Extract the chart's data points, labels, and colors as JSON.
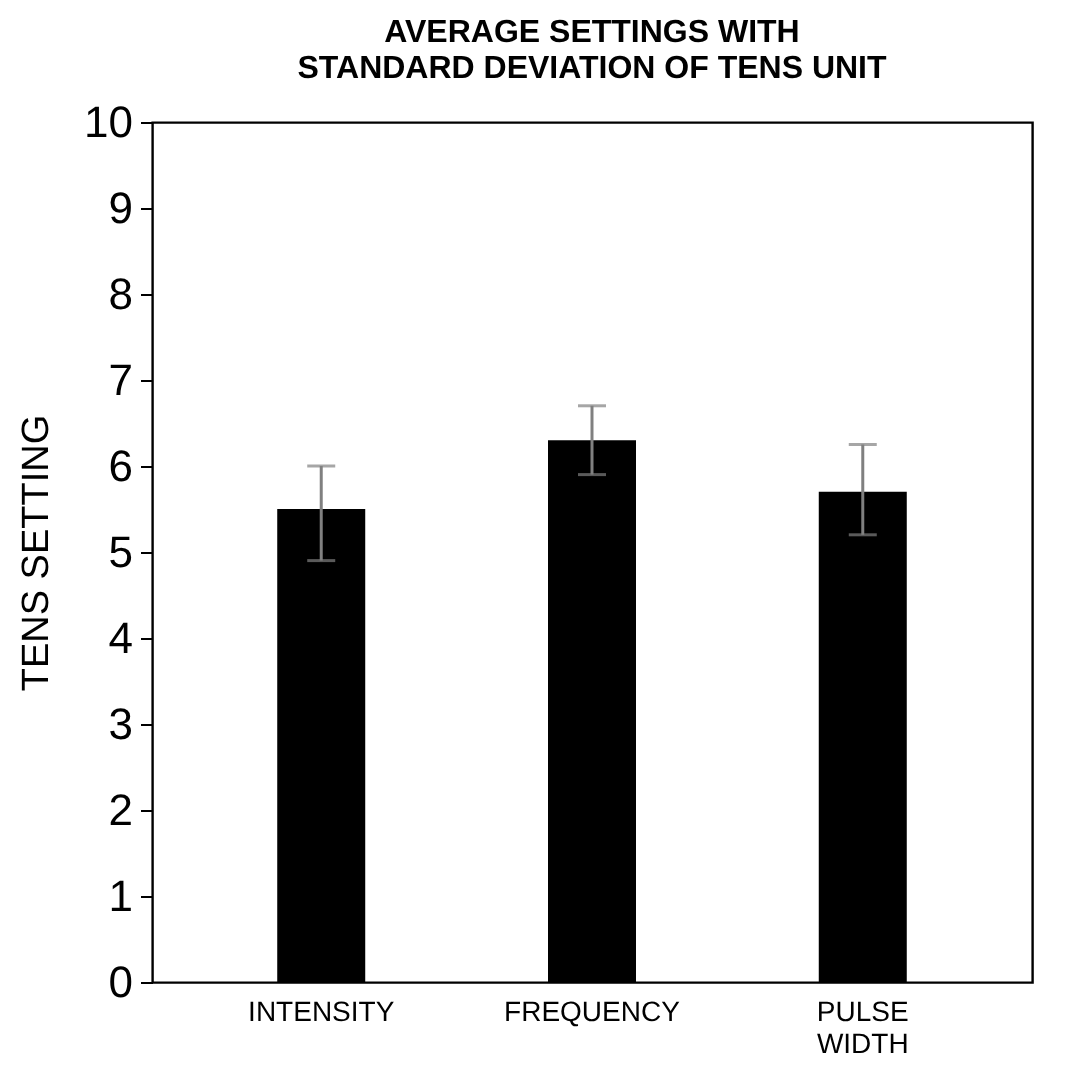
{
  "chart_data": {
    "type": "bar",
    "title": "AVERAGE SETTINGS WITH STANDARD DEVIATION OF TENS UNIT",
    "ylabel": "TENS SETTING",
    "categories": [
      "INTENSITY",
      "FREQUENCY",
      "PULSE WIDTH"
    ],
    "values": [
      5.5,
      6.3,
      5.7
    ],
    "color": "#000000",
    "errors": [
      [
        4.9,
        6.0
      ],
      [
        5.9,
        6.7
      ],
      [
        5.2,
        6.25
      ]
    ],
    "ylim": [
      0,
      10
    ],
    "yticks": [
      0,
      1,
      2,
      3,
      4,
      5,
      6,
      7,
      8,
      9,
      10
    ],
    "grid": false
  }
}
